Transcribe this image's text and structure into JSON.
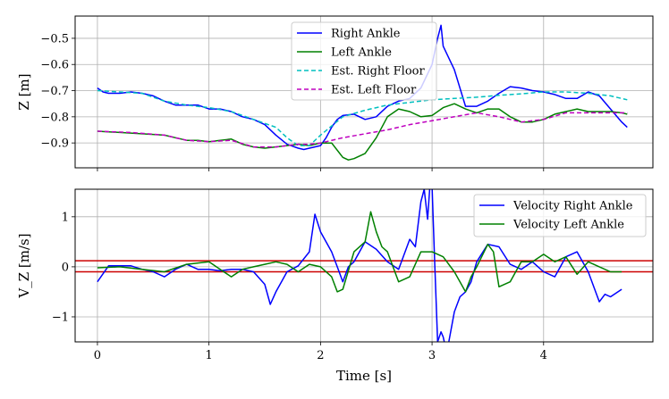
{
  "chart_data": [
    {
      "type": "line",
      "ylabel": "Z [m]",
      "xlabel": "",
      "xlim": [
        -0.2,
        4.98
      ],
      "ylim": [
        -0.995,
        -0.415
      ],
      "xticks": [
        0,
        1,
        2,
        3,
        4
      ],
      "yticks": [
        -0.5,
        -0.6,
        -0.7,
        -0.8,
        -0.9
      ],
      "ytick_labels": [
        "−0.5",
        "−0.6",
        "−0.7",
        "−0.8",
        "−0.9"
      ],
      "grid": true,
      "legend_position": "top-center",
      "series": [
        {
          "name": "Right Ankle",
          "color": "#0000ff",
          "style": "solid",
          "x": [
            0,
            0.05,
            0.1,
            0.2,
            0.3,
            0.4,
            0.5,
            0.6,
            0.7,
            0.8,
            0.9,
            1.0,
            1.1,
            1.2,
            1.3,
            1.4,
            1.5,
            1.6,
            1.7,
            1.8,
            1.85,
            1.9,
            2.0,
            2.05,
            2.1,
            2.15,
            2.2,
            2.3,
            2.4,
            2.5,
            2.6,
            2.7,
            2.8,
            2.9,
            3.0,
            3.05,
            3.08,
            3.1,
            3.2,
            3.3,
            3.4,
            3.5,
            3.6,
            3.7,
            3.8,
            3.9,
            4.0,
            4.1,
            4.2,
            4.3,
            4.4,
            4.5,
            4.6,
            4.7,
            4.75
          ],
          "y": [
            -0.69,
            -0.705,
            -0.71,
            -0.71,
            -0.705,
            -0.71,
            -0.72,
            -0.74,
            -0.755,
            -0.755,
            -0.755,
            -0.77,
            -0.77,
            -0.78,
            -0.8,
            -0.81,
            -0.83,
            -0.87,
            -0.905,
            -0.92,
            -0.925,
            -0.92,
            -0.91,
            -0.88,
            -0.84,
            -0.81,
            -0.795,
            -0.79,
            -0.81,
            -0.8,
            -0.76,
            -0.74,
            -0.73,
            -0.69,
            -0.6,
            -0.5,
            -0.45,
            -0.53,
            -0.62,
            -0.76,
            -0.76,
            -0.74,
            -0.71,
            -0.685,
            -0.69,
            -0.7,
            -0.705,
            -0.715,
            -0.73,
            -0.73,
            -0.705,
            -0.72,
            -0.77,
            -0.82,
            -0.84
          ]
        },
        {
          "name": "Left Ankle",
          "color": "#008000",
          "style": "solid",
          "x": [
            0,
            0.2,
            0.4,
            0.6,
            0.7,
            0.8,
            0.9,
            1.0,
            1.1,
            1.2,
            1.3,
            1.4,
            1.5,
            1.6,
            1.7,
            1.8,
            1.9,
            2.0,
            2.1,
            2.2,
            2.25,
            2.3,
            2.4,
            2.5,
            2.6,
            2.7,
            2.8,
            2.9,
            3.0,
            3.1,
            3.2,
            3.3,
            3.4,
            3.5,
            3.6,
            3.7,
            3.8,
            3.9,
            4.0,
            4.1,
            4.2,
            4.3,
            4.4,
            4.5,
            4.6,
            4.7,
            4.75
          ],
          "y": [
            -0.855,
            -0.86,
            -0.865,
            -0.87,
            -0.88,
            -0.89,
            -0.89,
            -0.895,
            -0.89,
            -0.885,
            -0.905,
            -0.915,
            -0.92,
            -0.915,
            -0.91,
            -0.905,
            -0.91,
            -0.9,
            -0.9,
            -0.955,
            -0.965,
            -0.96,
            -0.94,
            -0.88,
            -0.8,
            -0.77,
            -0.78,
            -0.8,
            -0.795,
            -0.765,
            -0.75,
            -0.77,
            -0.785,
            -0.77,
            -0.77,
            -0.8,
            -0.82,
            -0.82,
            -0.81,
            -0.79,
            -0.78,
            -0.77,
            -0.78,
            -0.78,
            -0.78,
            -0.785,
            -0.79
          ]
        },
        {
          "name": "Est. Right Floor",
          "color": "#00bfbf",
          "style": "dashed",
          "x": [
            0,
            0.2,
            0.4,
            0.6,
            0.8,
            1.0,
            1.2,
            1.4,
            1.6,
            1.7,
            1.8,
            1.9,
            2.0,
            2.2,
            2.4,
            2.6,
            2.8,
            3.0,
            3.2,
            3.4,
            3.6,
            3.8,
            4.0,
            4.2,
            4.4,
            4.6,
            4.75
          ],
          "y": [
            -0.7,
            -0.705,
            -0.71,
            -0.74,
            -0.755,
            -0.765,
            -0.78,
            -0.81,
            -0.84,
            -0.88,
            -0.91,
            -0.91,
            -0.87,
            -0.8,
            -0.775,
            -0.755,
            -0.745,
            -0.735,
            -0.73,
            -0.725,
            -0.718,
            -0.712,
            -0.705,
            -0.705,
            -0.71,
            -0.72,
            -0.735
          ]
        },
        {
          "name": "Est. Left Floor",
          "color": "#bf00bf",
          "style": "dashed",
          "x": [
            0,
            0.3,
            0.6,
            0.8,
            1.0,
            1.2,
            1.4,
            1.6,
            1.8,
            1.9,
            2.0,
            2.2,
            2.4,
            2.6,
            2.8,
            3.0,
            3.2,
            3.4,
            3.6,
            3.8,
            4.0,
            4.2,
            4.4,
            4.6,
            4.75
          ],
          "y": [
            -0.855,
            -0.86,
            -0.87,
            -0.89,
            -0.895,
            -0.89,
            -0.915,
            -0.915,
            -0.905,
            -0.905,
            -0.9,
            -0.88,
            -0.865,
            -0.85,
            -0.83,
            -0.815,
            -0.8,
            -0.785,
            -0.8,
            -0.82,
            -0.81,
            -0.785,
            -0.785,
            -0.785,
            -0.785
          ]
        }
      ]
    },
    {
      "type": "line",
      "ylabel": "V_Z [m/s]",
      "xlabel": "Time [s]",
      "xlim": [
        -0.2,
        4.98
      ],
      "ylim": [
        -1.5,
        1.55
      ],
      "xticks": [
        0,
        1,
        2,
        3,
        4
      ],
      "xtick_labels": [
        "0",
        "1",
        "2",
        "3",
        "4"
      ],
      "yticks": [
        1,
        0,
        -1
      ],
      "ytick_labels": [
        "1",
        "0",
        "−1"
      ],
      "grid": true,
      "legend_position": "top-right",
      "hlines": [
        {
          "y": 0.12,
          "color": "#cc0000"
        },
        {
          "y": -0.1,
          "color": "#cc0000"
        }
      ],
      "series": [
        {
          "name": "Velocity Right Ankle",
          "color": "#0000ff",
          "style": "solid",
          "x": [
            0,
            0.1,
            0.2,
            0.3,
            0.4,
            0.5,
            0.6,
            0.7,
            0.8,
            0.9,
            1.0,
            1.1,
            1.2,
            1.3,
            1.4,
            1.5,
            1.55,
            1.6,
            1.65,
            1.7,
            1.8,
            1.9,
            1.95,
            2.0,
            2.1,
            2.15,
            2.2,
            2.25,
            2.3,
            2.4,
            2.5,
            2.6,
            2.7,
            2.8,
            2.85,
            2.9,
            2.93,
            2.96,
            2.98,
            3.0,
            3.02,
            3.05,
            3.08,
            3.1,
            3.12,
            3.15,
            3.2,
            3.25,
            3.3,
            3.35,
            3.4,
            3.5,
            3.6,
            3.7,
            3.8,
            3.9,
            4.0,
            4.1,
            4.2,
            4.3,
            4.4,
            4.5,
            4.55,
            4.6,
            4.7
          ],
          "y": [
            -0.3,
            0.02,
            0.02,
            0.02,
            -0.05,
            -0.1,
            -0.2,
            -0.05,
            0.05,
            -0.05,
            -0.05,
            -0.08,
            -0.05,
            -0.05,
            -0.1,
            -0.35,
            -0.75,
            -0.5,
            -0.3,
            -0.1,
            0.02,
            0.3,
            1.05,
            0.7,
            0.3,
            0.0,
            -0.3,
            0.0,
            0.1,
            0.5,
            0.35,
            0.1,
            -0.05,
            0.55,
            0.4,
            1.3,
            1.55,
            0.95,
            1.6,
            1.6,
            0.3,
            -1.5,
            -1.3,
            -1.4,
            -1.6,
            -1.5,
            -0.9,
            -0.6,
            -0.5,
            -0.3,
            0.1,
            0.45,
            0.4,
            0.05,
            -0.05,
            0.1,
            -0.1,
            -0.2,
            0.2,
            0.3,
            -0.1,
            -0.7,
            -0.55,
            -0.6,
            -0.45
          ]
        },
        {
          "name": "Velocity Left Ankle",
          "color": "#008000",
          "style": "solid",
          "x": [
            0,
            0.2,
            0.4,
            0.6,
            0.8,
            1.0,
            1.1,
            1.2,
            1.3,
            1.4,
            1.5,
            1.6,
            1.7,
            1.8,
            1.9,
            2.0,
            2.1,
            2.15,
            2.2,
            2.3,
            2.4,
            2.45,
            2.5,
            2.55,
            2.6,
            2.7,
            2.8,
            2.9,
            3.0,
            3.1,
            3.2,
            3.3,
            3.35,
            3.4,
            3.5,
            3.55,
            3.6,
            3.7,
            3.8,
            3.9,
            4.0,
            4.1,
            4.2,
            4.3,
            4.4,
            4.5,
            4.6,
            4.7
          ],
          "y": [
            -0.02,
            0.0,
            -0.05,
            -0.1,
            0.05,
            0.1,
            -0.05,
            -0.2,
            -0.05,
            0.0,
            0.05,
            0.1,
            0.05,
            -0.1,
            0.05,
            0.0,
            -0.2,
            -0.5,
            -0.45,
            0.3,
            0.5,
            1.1,
            0.7,
            0.4,
            0.3,
            -0.3,
            -0.2,
            0.3,
            0.3,
            0.2,
            -0.1,
            -0.5,
            -0.2,
            0.0,
            0.45,
            0.3,
            -0.4,
            -0.3,
            0.1,
            0.1,
            0.25,
            0.1,
            0.2,
            -0.15,
            0.1,
            0.0,
            -0.1,
            -0.1
          ]
        }
      ]
    }
  ]
}
